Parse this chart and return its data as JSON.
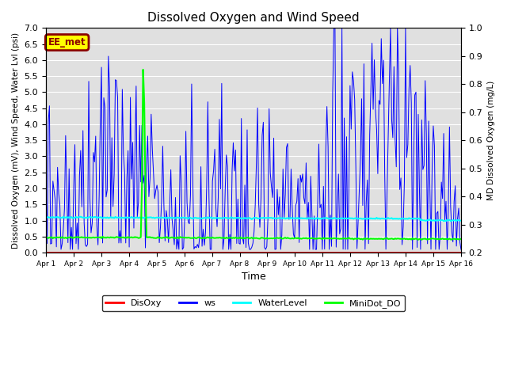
{
  "title": "Dissolved Oxygen and Wind Speed",
  "xlabel": "Time",
  "ylabel_left": "Dissolved Oxygen (mV), Wind Speed, Water Lvl (psi)",
  "ylabel_right": "MD Dissolved Oxygen (mg/L)",
  "ylim_left": [
    0.0,
    7.0
  ],
  "ylim_right": [
    0.2,
    1.0
  ],
  "xlim": [
    0,
    15
  ],
  "xtick_labels": [
    "Apr 1",
    "Apr 2",
    "Apr 3",
    "Apr 4",
    "Apr 5",
    "Apr 6",
    "Apr 7",
    "Apr 8",
    "Apr 9",
    "Apr 10",
    "Apr 11",
    "Apr 12",
    "Apr 13",
    "Apr 14",
    "Apr 15",
    "Apr 16"
  ],
  "xtick_positions": [
    0,
    1,
    2,
    3,
    4,
    5,
    6,
    7,
    8,
    9,
    10,
    11,
    12,
    13,
    14,
    15
  ],
  "annotation_text": "EE_met",
  "series": {
    "DisOxy": {
      "color": "red",
      "linewidth": 1.2,
      "zorder": 3
    },
    "ws": {
      "color": "blue",
      "linewidth": 0.7,
      "zorder": 2
    },
    "WaterLevel": {
      "color": "cyan",
      "linewidth": 1.5,
      "zorder": 4
    },
    "MiniDot_DO": {
      "color": "lime",
      "linewidth": 1.5,
      "zorder": 5
    }
  },
  "background_color": "#e0e0e0",
  "legend_colors": {
    "DisOxy": "red",
    "ws": "blue",
    "WaterLevel": "cyan",
    "MiniDot_DO": "lime"
  },
  "yticks_left": [
    0.0,
    0.5,
    1.0,
    1.5,
    2.0,
    2.5,
    3.0,
    3.5,
    4.0,
    4.5,
    5.0,
    5.5,
    6.0,
    6.5,
    7.0
  ],
  "yticks_right": [
    0.2,
    0.3,
    0.4,
    0.5,
    0.6,
    0.7,
    0.8,
    0.9,
    1.0
  ]
}
